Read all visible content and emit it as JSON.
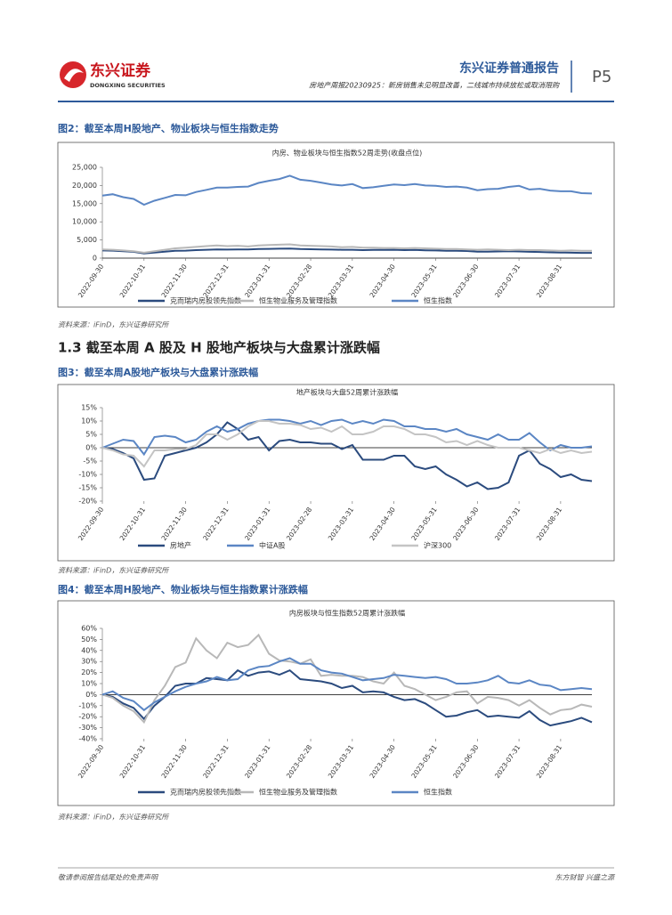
{
  "header": {
    "company": "东兴证券",
    "company_en": "DONGXING SECURITIES",
    "report_type": "东兴证券普通报告",
    "subtitle": "房地产周报20230925：新房销售未见明显改善，二线城市持续放松或取消限购",
    "page": "P5"
  },
  "figures": [
    {
      "caption": "图2：截至本周H股地产、物业板块与恒生指数走势",
      "source": "资料来源：iFinD，东兴证券研究所"
    },
    {
      "caption": "图3：截至本周A股地产板块与大盘累计涨跌幅",
      "source": "资料来源：iFinD，东兴证券研究所"
    },
    {
      "caption": "图4：截至本周H股地产、物业板块与恒生指数累计涨跌幅",
      "source": "资料来源：iFinD，东兴证券研究所"
    }
  ],
  "section_heading": "1.3 截至本周 A 股及 H 股地产板块与大盘累计涨跌幅",
  "chart_data": [
    {
      "type": "line",
      "title": "内房、物业板块与恒生指数52周走势(收盘点位)",
      "categories": [
        "2022-09-30",
        null,
        null,
        null,
        "2022-10-31",
        null,
        null,
        null,
        "2022-11-30",
        null,
        null,
        null,
        "2022-12-31",
        null,
        null,
        null,
        "2023-01-31",
        null,
        null,
        null,
        "2023-02-28",
        null,
        null,
        null,
        "2023-03-31",
        null,
        null,
        null,
        "2023-04-30",
        null,
        null,
        null,
        "2023-05-31",
        null,
        null,
        null,
        "2023-06-30",
        null,
        null,
        null,
        "2023-07-31",
        null,
        null,
        null,
        "2023-08-31",
        null,
        null,
        null
      ],
      "ylim": [
        0,
        25000
      ],
      "yticks": [
        0,
        {
          "value": 5000,
          "label": "5,000"
        },
        {
          "value": 10000,
          "label": "10,000"
        },
        {
          "value": 15000,
          "label": "15,000"
        },
        {
          "value": 20000,
          "label": "20,000"
        },
        {
          "value": 25000,
          "label": "25,000"
        }
      ],
      "series": [
        {
          "name": "克而瑞内房股领先指数",
          "color": "#2b4b7e",
          "values": [
            2100,
            2050,
            1900,
            1750,
            1300,
            1550,
            1800,
            2000,
            2050,
            2200,
            2300,
            2400,
            2350,
            2400,
            2400,
            2500,
            2550,
            2600,
            2650,
            2500,
            2450,
            2400,
            2350,
            2300,
            2300,
            2200,
            2250,
            2250,
            2300,
            2200,
            2250,
            2150,
            2100,
            2000,
            2000,
            1950,
            1800,
            1800,
            1850,
            1900,
            1850,
            1750,
            1700,
            1600,
            1550,
            1500,
            1450,
            1450
          ]
        },
        {
          "name": "恒生物业服务及管理指数",
          "color": "#b8b8b8",
          "values": [
            2400,
            2300,
            2100,
            1900,
            1500,
            1900,
            2300,
            2700,
            2900,
            3100,
            3300,
            3500,
            3300,
            3400,
            3200,
            3500,
            3600,
            3700,
            3800,
            3500,
            3400,
            3300,
            3200,
            3000,
            3100,
            2900,
            2900,
            2800,
            2800,
            2700,
            2800,
            2700,
            2600,
            2500,
            2500,
            2400,
            2300,
            2400,
            2300,
            2200,
            2300,
            2200,
            2200,
            2100,
            2000,
            2100,
            2000,
            2000
          ]
        },
        {
          "name": "恒生指数",
          "color": "#5b86c4",
          "values": [
            17200,
            17600,
            16800,
            16300,
            14700,
            15800,
            16600,
            17400,
            17300,
            18200,
            18800,
            19400,
            19400,
            19600,
            19700,
            20700,
            21300,
            21800,
            22700,
            21600,
            21300,
            20800,
            20300,
            20000,
            20400,
            19300,
            19500,
            19900,
            20300,
            20100,
            20400,
            20000,
            19900,
            19600,
            19700,
            19400,
            18700,
            19000,
            19100,
            19600,
            19900,
            18900,
            19100,
            18600,
            18400,
            18400,
            17900,
            17800
          ]
        }
      ]
    },
    {
      "type": "line",
      "title": "地产板块与大盘52周累计涨跌幅",
      "categories": [
        "2022-09-30",
        null,
        null,
        null,
        "2022-10-31",
        null,
        null,
        null,
        "2022-11-30",
        null,
        null,
        null,
        "2022-12-31",
        null,
        null,
        null,
        "2023-01-31",
        null,
        null,
        null,
        "2023-02-28",
        null,
        null,
        null,
        "2023-03-31",
        null,
        null,
        null,
        "2023-04-30",
        null,
        null,
        null,
        "2023-05-31",
        null,
        null,
        null,
        "2023-06-30",
        null,
        null,
        null,
        "2023-07-31",
        null,
        null,
        null,
        "2023-08-31",
        null,
        null,
        null
      ],
      "ylim": [
        -20,
        15
      ],
      "yticks": [
        {
          "value": -20,
          "label": "-20%"
        },
        {
          "value": -15,
          "label": "-15%"
        },
        {
          "value": -10,
          "label": "-10%"
        },
        {
          "value": -5,
          "label": "-5%"
        },
        {
          "value": 0,
          "label": "0%"
        },
        {
          "value": 5,
          "label": "5%"
        },
        {
          "value": 10,
          "label": "10%"
        },
        {
          "value": 15,
          "label": "15%"
        }
      ],
      "series": [
        {
          "name": "房地产",
          "color": "#2b4b7e",
          "values": [
            0,
            -0.5,
            -2,
            -4,
            -12,
            -11.5,
            -3,
            -2,
            -1,
            0,
            2,
            5,
            9.5,
            7,
            3,
            4,
            -1,
            2.5,
            3,
            2,
            2,
            1.5,
            1.5,
            -0.5,
            1,
            -4.5,
            -4.5,
            -4.5,
            -3,
            -3,
            -7,
            -8,
            -7,
            -10,
            -12,
            -14.5,
            -13,
            -15.5,
            -15,
            -13,
            -3,
            -1,
            -6,
            -8,
            -11,
            -10,
            -12,
            -12.5
          ]
        },
        {
          "name": "中证A股",
          "color": "#5b86c4",
          "values": [
            0,
            1.5,
            3,
            2.5,
            -2.5,
            4,
            4.5,
            4,
            2,
            3,
            6,
            8,
            6,
            7,
            9,
            10,
            10.5,
            10.5,
            10,
            9,
            10,
            8.5,
            10,
            10.5,
            9,
            10,
            9,
            10.5,
            10,
            8,
            8,
            7,
            7,
            6,
            7,
            5,
            4,
            3,
            5,
            3,
            3,
            5.5,
            2,
            -1,
            1,
            0,
            0,
            0.5
          ]
        },
        {
          "name": "沪深300",
          "color": "#c4c4c4",
          "values": [
            0,
            -1,
            -2.5,
            -3,
            -7,
            -1,
            -1,
            -0.5,
            -0.5,
            1,
            5,
            5,
            3,
            5,
            8,
            10,
            10,
            9,
            9,
            8.5,
            7,
            7.5,
            6,
            8,
            5,
            5,
            6,
            8,
            8,
            7,
            5,
            5,
            4,
            2,
            2.5,
            1,
            2.5,
            1,
            0,
            0,
            0,
            -1,
            -2,
            -0.5,
            -2,
            -1,
            -2,
            -1.5
          ]
        }
      ]
    },
    {
      "type": "line",
      "title": "内房板块与恒生指数52周累计涨跌幅",
      "categories": [
        "2022-09-30",
        null,
        null,
        null,
        "2022-10-31",
        null,
        null,
        null,
        "2022-11-30",
        null,
        null,
        null,
        "2022-12-31",
        null,
        null,
        null,
        "2023-01-31",
        null,
        null,
        null,
        "2023-02-28",
        null,
        null,
        null,
        "2023-03-31",
        null,
        null,
        null,
        "2023-04-30",
        null,
        null,
        null,
        "2023-05-31",
        null,
        null,
        null,
        "2023-06-30",
        null,
        null,
        null,
        "2023-07-31",
        null,
        null,
        null,
        "2023-08-31",
        null,
        null,
        null
      ],
      "ylim": [
        -40,
        60
      ],
      "yticks": [
        {
          "value": -40,
          "label": "-40%"
        },
        {
          "value": -30,
          "label": "-30%"
        },
        {
          "value": -20,
          "label": "-20%"
        },
        {
          "value": -10,
          "label": "-10%"
        },
        {
          "value": 0,
          "label": "0%"
        },
        {
          "value": 10,
          "label": "10%"
        },
        {
          "value": 20,
          "label": "20%"
        },
        {
          "value": 30,
          "label": "30%"
        },
        {
          "value": 40,
          "label": "40%"
        },
        {
          "value": 50,
          "label": "50%"
        },
        {
          "value": 60,
          "label": "60%"
        }
      ],
      "series": [
        {
          "name": "克而瑞内房股领先指数",
          "color": "#2b4b7e",
          "values": [
            0,
            -2,
            -8,
            -12,
            -22,
            -10,
            -2,
            8,
            10,
            10,
            15,
            14,
            13,
            22,
            17,
            20,
            21,
            18,
            22,
            14,
            13,
            12,
            10,
            6,
            8,
            2,
            3,
            2,
            -2,
            -5,
            -4,
            -8,
            -14,
            -20,
            -19,
            -16,
            -14,
            -20,
            -19,
            -20,
            -21,
            -15,
            -23,
            -28,
            -26,
            -24,
            -21,
            -25
          ]
        },
        {
          "name": "恒生物业服务及管理指数",
          "color": "#b8b8b8",
          "values": [
            0,
            -3,
            -10,
            -15,
            -25,
            -5,
            8,
            25,
            29,
            51,
            40,
            33,
            47,
            43,
            45,
            54,
            37,
            31,
            30,
            28,
            32,
            17,
            18,
            17,
            17,
            16,
            12,
            10,
            20,
            8,
            5,
            0,
            -5,
            -2,
            2,
            3,
            -8,
            -2,
            -3,
            -5,
            -10,
            -5,
            -12,
            -18,
            -14,
            -13,
            -9,
            -11
          ]
        },
        {
          "name": "恒生指数",
          "color": "#5b86c4",
          "values": [
            0,
            3,
            -3,
            -6,
            -14,
            -7,
            -2,
            3,
            7,
            10,
            12,
            16,
            13,
            14,
            22,
            25,
            26,
            30,
            33,
            28,
            28,
            22,
            20,
            19,
            16,
            13,
            14,
            15,
            18,
            17,
            16,
            15,
            16,
            14,
            10,
            10,
            11,
            13,
            17,
            11,
            10,
            13,
            9,
            8,
            4,
            5,
            6,
            5
          ]
        }
      ]
    }
  ],
  "footer": {
    "left": "敬请参阅报告结尾处的免责声明",
    "right": "东方财智 兴盛之源"
  }
}
